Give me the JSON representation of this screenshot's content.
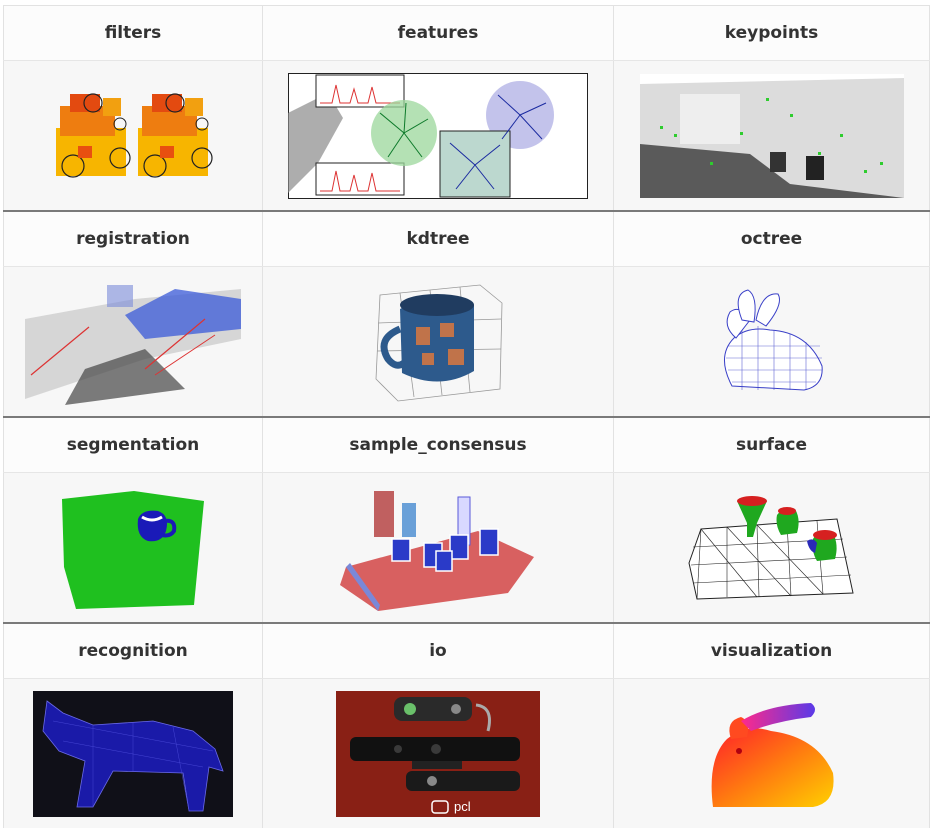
{
  "modules": [
    {
      "label": "filters",
      "image_icon": "filters-image"
    },
    {
      "label": "features",
      "image_icon": "features-image"
    },
    {
      "label": "keypoints",
      "image_icon": "keypoints-image"
    },
    {
      "label": "registration",
      "image_icon": "registration-image"
    },
    {
      "label": "kdtree",
      "image_icon": "kdtree-image"
    },
    {
      "label": "octree",
      "image_icon": "octree-image"
    },
    {
      "label": "segmentation",
      "image_icon": "segmentation-image"
    },
    {
      "label": "sample_consensus",
      "image_icon": "sample-consensus-image"
    },
    {
      "label": "surface",
      "image_icon": "surface-image"
    },
    {
      "label": "recognition",
      "image_icon": "recognition-image"
    },
    {
      "label": "io",
      "image_icon": "io-image"
    },
    {
      "label": "visualization",
      "image_icon": "visualization-image"
    }
  ],
  "io_logo_text": "pcl",
  "colors": {
    "header_bg": "#fcfcfc",
    "image_bg": "#f7f7f7",
    "separator": "#7a7a7a",
    "text": "#333333"
  }
}
